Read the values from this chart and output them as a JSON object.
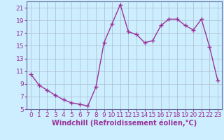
{
  "x": [
    0,
    1,
    2,
    3,
    4,
    5,
    6,
    7,
    8,
    9,
    10,
    11,
    12,
    13,
    14,
    15,
    16,
    17,
    18,
    19,
    20,
    21,
    22,
    23
  ],
  "y": [
    10.5,
    8.8,
    8.0,
    7.2,
    6.5,
    6.0,
    5.8,
    5.5,
    8.5,
    15.5,
    18.5,
    21.5,
    17.2,
    16.8,
    15.5,
    15.8,
    18.2,
    19.2,
    19.2,
    18.2,
    17.5,
    19.2,
    14.8,
    9.5
  ],
  "line_color": "#993399",
  "marker": "+",
  "marker_size": 4,
  "linewidth": 1.0,
  "xlabel": "Windchill (Refroidissement éolien,°C)",
  "xlabel_fontsize": 7,
  "ylim": [
    5,
    22
  ],
  "xlim": [
    -0.5,
    23.5
  ],
  "yticks": [
    5,
    7,
    9,
    11,
    13,
    15,
    17,
    19,
    21
  ],
  "xticks": [
    0,
    1,
    2,
    3,
    4,
    5,
    6,
    7,
    8,
    9,
    10,
    11,
    12,
    13,
    14,
    15,
    16,
    17,
    18,
    19,
    20,
    21,
    22,
    23
  ],
  "background_color": "#cceeff",
  "grid_color": "#aabbcc",
  "tick_fontsize": 6.5,
  "tick_color": "#993399",
  "spine_color": "#666699"
}
